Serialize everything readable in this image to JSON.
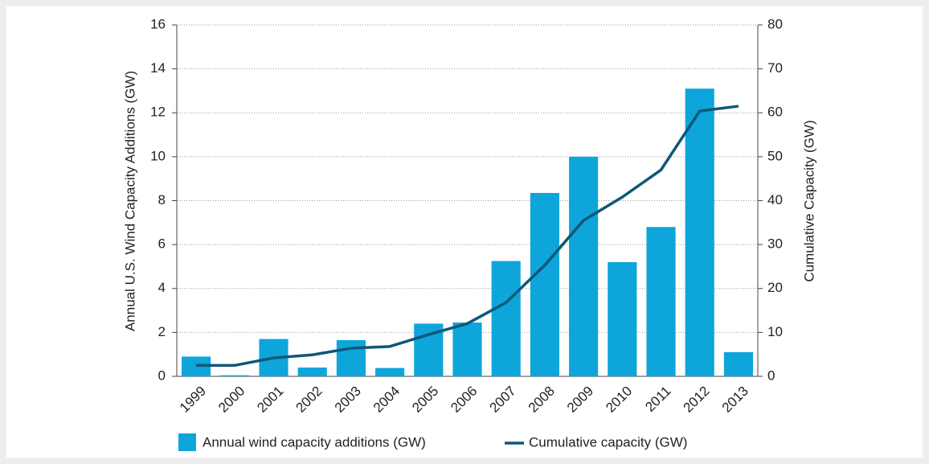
{
  "chart_data": {
    "type": "bar-line",
    "categories": [
      "1999",
      "2000",
      "2001",
      "2002",
      "2003",
      "2004",
      "2005",
      "2006",
      "2007",
      "2008",
      "2009",
      "2010",
      "2011",
      "2012",
      "2013"
    ],
    "series": [
      {
        "name": "Annual wind capacity additions (GW)",
        "color": "#0ea5db",
        "type": "bar",
        "values": [
          0.9,
          0.05,
          1.7,
          0.4,
          1.65,
          0.38,
          2.4,
          2.45,
          5.25,
          8.35,
          10.0,
          5.2,
          6.8,
          13.1,
          1.1
        ]
      },
      {
        "name": "Cumulative capacity (GW)",
        "color": "#0d5877",
        "type": "line",
        "axis": "y2",
        "values": [
          2.5,
          2.5,
          4.2,
          4.9,
          6.4,
          6.8,
          9.5,
          12,
          16.8,
          25.3,
          35.5,
          40.8,
          47,
          60.4,
          61.5
        ]
      }
    ],
    "ylabel": "Annual U.S. Wind Capacity Additions (GW)",
    "y2label": "Cumulative Capacity (GW)",
    "ylim": [
      0,
      16
    ],
    "yticks": [
      0,
      2,
      4,
      6,
      8,
      10,
      12,
      14,
      16
    ],
    "y2lim": [
      0,
      80
    ],
    "y2ticks": [
      0,
      10,
      20,
      30,
      40,
      50,
      60,
      70,
      80
    ],
    "grid": true
  }
}
